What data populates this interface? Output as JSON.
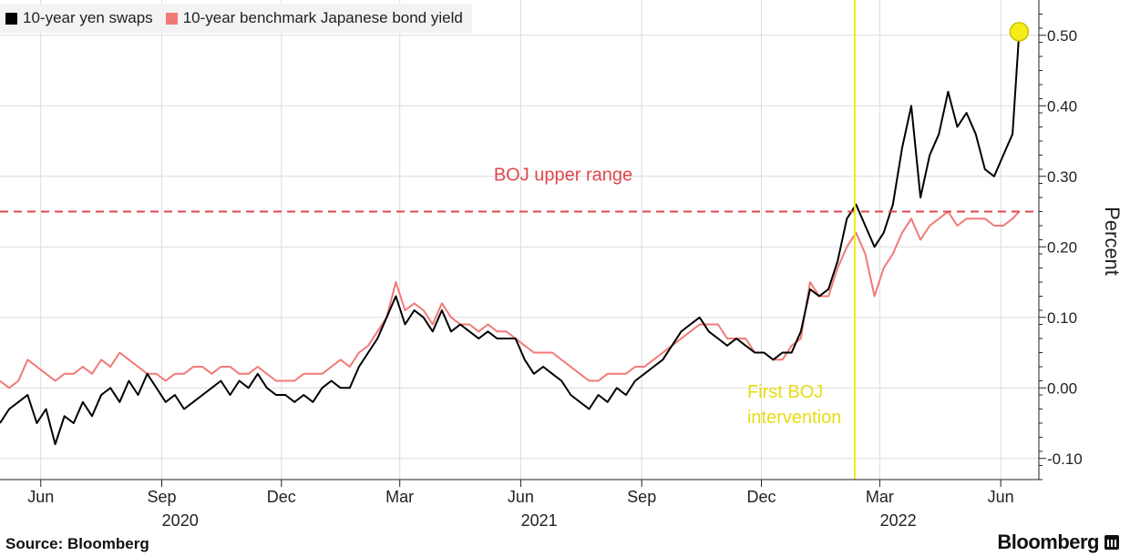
{
  "legend": [
    {
      "label": "10-year yen swaps",
      "color": "#000000"
    },
    {
      "label": "10-year benchmark Japanese bond yield",
      "color": "#f07a76"
    }
  ],
  "footer": {
    "source": "Source: Bloomberg",
    "brand": "Bloomberg"
  },
  "chart_data": {
    "type": "line",
    "ylabel": "Percent",
    "ylim": [
      -0.13,
      0.55
    ],
    "yticks": [
      -0.1,
      0.0,
      0.1,
      0.2,
      0.3,
      0.4,
      0.5
    ],
    "ytick_labels": [
      "-0.10",
      "0.00",
      "0.10",
      "0.20",
      "0.30",
      "0.40",
      "0.50"
    ],
    "xlim": [
      "2020-05-01",
      "2022-06-30"
    ],
    "xticks": [
      {
        "date": "2020-06-01",
        "label": "Jun"
      },
      {
        "date": "2020-09-01",
        "label": "Sep"
      },
      {
        "date": "2020-12-01",
        "label": "Dec"
      },
      {
        "date": "2021-03-01",
        "label": "Mar"
      },
      {
        "date": "2021-06-01",
        "label": "Jun"
      },
      {
        "date": "2021-09-01",
        "label": "Sep"
      },
      {
        "date": "2021-12-01",
        "label": "Dec"
      },
      {
        "date": "2022-03-01",
        "label": "Mar"
      },
      {
        "date": "2022-06-01",
        "label": "Jun"
      }
    ],
    "year_labels": [
      {
        "date": "2020-09-15",
        "label": "2020"
      },
      {
        "date": "2021-06-15",
        "label": "2021"
      },
      {
        "date": "2022-03-15",
        "label": "2022"
      }
    ],
    "reference_line": {
      "value": 0.25,
      "label": "BOJ upper range",
      "color": "#e0474c"
    },
    "event": {
      "date": "2022-02-10",
      "label_lines": [
        "First BOJ",
        "intervention"
      ],
      "color": "#f5ec18"
    },
    "highlight_point": {
      "date": "2022-06-15",
      "value": 0.505,
      "color": "#f5ec18"
    },
    "grid": true,
    "series": [
      {
        "name": "10-year yen swaps",
        "color": "#000000",
        "points": [
          [
            "2020-05-01",
            -0.05
          ],
          [
            "2020-05-08",
            -0.03
          ],
          [
            "2020-05-15",
            -0.02
          ],
          [
            "2020-05-22",
            -0.01
          ],
          [
            "2020-05-29",
            -0.05
          ],
          [
            "2020-06-05",
            -0.03
          ],
          [
            "2020-06-12",
            -0.08
          ],
          [
            "2020-06-19",
            -0.04
          ],
          [
            "2020-06-26",
            -0.05
          ],
          [
            "2020-07-03",
            -0.02
          ],
          [
            "2020-07-10",
            -0.04
          ],
          [
            "2020-07-17",
            -0.01
          ],
          [
            "2020-07-24",
            0.0
          ],
          [
            "2020-07-31",
            -0.02
          ],
          [
            "2020-08-07",
            0.01
          ],
          [
            "2020-08-14",
            -0.01
          ],
          [
            "2020-08-21",
            0.02
          ],
          [
            "2020-08-28",
            0.0
          ],
          [
            "2020-09-04",
            -0.02
          ],
          [
            "2020-09-11",
            -0.01
          ],
          [
            "2020-09-18",
            -0.03
          ],
          [
            "2020-09-25",
            -0.02
          ],
          [
            "2020-10-02",
            -0.01
          ],
          [
            "2020-10-09",
            0.0
          ],
          [
            "2020-10-16",
            0.01
          ],
          [
            "2020-10-23",
            -0.01
          ],
          [
            "2020-10-30",
            0.01
          ],
          [
            "2020-11-06",
            0.0
          ],
          [
            "2020-11-13",
            0.02
          ],
          [
            "2020-11-20",
            0.0
          ],
          [
            "2020-11-27",
            -0.01
          ],
          [
            "2020-12-04",
            -0.01
          ],
          [
            "2020-12-11",
            -0.02
          ],
          [
            "2020-12-18",
            -0.01
          ],
          [
            "2020-12-25",
            -0.02
          ],
          [
            "2021-01-01",
            0.0
          ],
          [
            "2021-01-08",
            0.01
          ],
          [
            "2021-01-15",
            0.0
          ],
          [
            "2021-01-22",
            0.0
          ],
          [
            "2021-01-29",
            0.03
          ],
          [
            "2021-02-05",
            0.05
          ],
          [
            "2021-02-12",
            0.07
          ],
          [
            "2021-02-19",
            0.1
          ],
          [
            "2021-02-26",
            0.13
          ],
          [
            "2021-03-05",
            0.09
          ],
          [
            "2021-03-12",
            0.11
          ],
          [
            "2021-03-19",
            0.1
          ],
          [
            "2021-03-26",
            0.08
          ],
          [
            "2021-04-02",
            0.11
          ],
          [
            "2021-04-09",
            0.08
          ],
          [
            "2021-04-16",
            0.09
          ],
          [
            "2021-04-23",
            0.08
          ],
          [
            "2021-04-30",
            0.07
          ],
          [
            "2021-05-07",
            0.08
          ],
          [
            "2021-05-14",
            0.07
          ],
          [
            "2021-05-21",
            0.07
          ],
          [
            "2021-05-28",
            0.07
          ],
          [
            "2021-06-04",
            0.04
          ],
          [
            "2021-06-11",
            0.02
          ],
          [
            "2021-06-18",
            0.03
          ],
          [
            "2021-06-25",
            0.02
          ],
          [
            "2021-07-02",
            0.01
          ],
          [
            "2021-07-09",
            -0.01
          ],
          [
            "2021-07-16",
            -0.02
          ],
          [
            "2021-07-23",
            -0.03
          ],
          [
            "2021-07-30",
            -0.01
          ],
          [
            "2021-08-06",
            -0.02
          ],
          [
            "2021-08-13",
            0.0
          ],
          [
            "2021-08-20",
            -0.01
          ],
          [
            "2021-08-27",
            0.01
          ],
          [
            "2021-09-03",
            0.02
          ],
          [
            "2021-09-10",
            0.03
          ],
          [
            "2021-09-17",
            0.04
          ],
          [
            "2021-09-24",
            0.06
          ],
          [
            "2021-10-01",
            0.08
          ],
          [
            "2021-10-08",
            0.09
          ],
          [
            "2021-10-15",
            0.1
          ],
          [
            "2021-10-22",
            0.08
          ],
          [
            "2021-10-29",
            0.07
          ],
          [
            "2021-11-05",
            0.06
          ],
          [
            "2021-11-12",
            0.07
          ],
          [
            "2021-11-19",
            0.06
          ],
          [
            "2021-11-26",
            0.05
          ],
          [
            "2021-12-03",
            0.05
          ],
          [
            "2021-12-10",
            0.04
          ],
          [
            "2021-12-17",
            0.05
          ],
          [
            "2021-12-24",
            0.05
          ],
          [
            "2021-12-31",
            0.08
          ],
          [
            "2022-01-07",
            0.14
          ],
          [
            "2022-01-14",
            0.13
          ],
          [
            "2022-01-21",
            0.14
          ],
          [
            "2022-01-28",
            0.18
          ],
          [
            "2022-02-04",
            0.24
          ],
          [
            "2022-02-11",
            0.26
          ],
          [
            "2022-02-18",
            0.23
          ],
          [
            "2022-02-25",
            0.2
          ],
          [
            "2022-03-04",
            0.22
          ],
          [
            "2022-03-11",
            0.26
          ],
          [
            "2022-03-18",
            0.34
          ],
          [
            "2022-03-25",
            0.4
          ],
          [
            "2022-04-01",
            0.27
          ],
          [
            "2022-04-08",
            0.33
          ],
          [
            "2022-04-15",
            0.36
          ],
          [
            "2022-04-22",
            0.42
          ],
          [
            "2022-04-29",
            0.37
          ],
          [
            "2022-05-06",
            0.39
          ],
          [
            "2022-05-13",
            0.36
          ],
          [
            "2022-05-20",
            0.31
          ],
          [
            "2022-05-27",
            0.3
          ],
          [
            "2022-06-03",
            0.33
          ],
          [
            "2022-06-10",
            0.36
          ],
          [
            "2022-06-15",
            0.505
          ]
        ]
      },
      {
        "name": "10-year benchmark Japanese bond yield",
        "color": "#f07a76",
        "points": [
          [
            "2020-05-01",
            0.01
          ],
          [
            "2020-05-08",
            0.0
          ],
          [
            "2020-05-15",
            0.01
          ],
          [
            "2020-05-22",
            0.04
          ],
          [
            "2020-05-29",
            0.03
          ],
          [
            "2020-06-05",
            0.02
          ],
          [
            "2020-06-12",
            0.01
          ],
          [
            "2020-06-19",
            0.02
          ],
          [
            "2020-06-26",
            0.02
          ],
          [
            "2020-07-03",
            0.03
          ],
          [
            "2020-07-10",
            0.02
          ],
          [
            "2020-07-17",
            0.04
          ],
          [
            "2020-07-24",
            0.03
          ],
          [
            "2020-07-31",
            0.05
          ],
          [
            "2020-08-07",
            0.04
          ],
          [
            "2020-08-14",
            0.03
          ],
          [
            "2020-08-21",
            0.02
          ],
          [
            "2020-08-28",
            0.02
          ],
          [
            "2020-09-04",
            0.01
          ],
          [
            "2020-09-11",
            0.02
          ],
          [
            "2020-09-18",
            0.02
          ],
          [
            "2020-09-25",
            0.03
          ],
          [
            "2020-10-02",
            0.03
          ],
          [
            "2020-10-09",
            0.02
          ],
          [
            "2020-10-16",
            0.03
          ],
          [
            "2020-10-23",
            0.03
          ],
          [
            "2020-10-30",
            0.02
          ],
          [
            "2020-11-06",
            0.02
          ],
          [
            "2020-11-13",
            0.03
          ],
          [
            "2020-11-20",
            0.02
          ],
          [
            "2020-11-27",
            0.01
          ],
          [
            "2020-12-04",
            0.01
          ],
          [
            "2020-12-11",
            0.01
          ],
          [
            "2020-12-18",
            0.02
          ],
          [
            "2020-12-25",
            0.02
          ],
          [
            "2021-01-01",
            0.02
          ],
          [
            "2021-01-08",
            0.03
          ],
          [
            "2021-01-15",
            0.04
          ],
          [
            "2021-01-22",
            0.03
          ],
          [
            "2021-01-29",
            0.05
          ],
          [
            "2021-02-05",
            0.06
          ],
          [
            "2021-02-12",
            0.08
          ],
          [
            "2021-02-19",
            0.1
          ],
          [
            "2021-02-26",
            0.15
          ],
          [
            "2021-03-05",
            0.11
          ],
          [
            "2021-03-12",
            0.12
          ],
          [
            "2021-03-19",
            0.11
          ],
          [
            "2021-03-26",
            0.09
          ],
          [
            "2021-04-02",
            0.12
          ],
          [
            "2021-04-09",
            0.1
          ],
          [
            "2021-04-16",
            0.09
          ],
          [
            "2021-04-23",
            0.09
          ],
          [
            "2021-04-30",
            0.08
          ],
          [
            "2021-05-07",
            0.09
          ],
          [
            "2021-05-14",
            0.08
          ],
          [
            "2021-05-21",
            0.08
          ],
          [
            "2021-05-28",
            0.07
          ],
          [
            "2021-06-04",
            0.06
          ],
          [
            "2021-06-11",
            0.05
          ],
          [
            "2021-06-18",
            0.05
          ],
          [
            "2021-06-25",
            0.05
          ],
          [
            "2021-07-02",
            0.04
          ],
          [
            "2021-07-09",
            0.03
          ],
          [
            "2021-07-16",
            0.02
          ],
          [
            "2021-07-23",
            0.01
          ],
          [
            "2021-07-30",
            0.01
          ],
          [
            "2021-08-06",
            0.02
          ],
          [
            "2021-08-13",
            0.02
          ],
          [
            "2021-08-20",
            0.02
          ],
          [
            "2021-08-27",
            0.03
          ],
          [
            "2021-09-03",
            0.03
          ],
          [
            "2021-09-10",
            0.04
          ],
          [
            "2021-09-17",
            0.05
          ],
          [
            "2021-09-24",
            0.06
          ],
          [
            "2021-10-01",
            0.07
          ],
          [
            "2021-10-08",
            0.08
          ],
          [
            "2021-10-15",
            0.09
          ],
          [
            "2021-10-22",
            0.09
          ],
          [
            "2021-10-29",
            0.09
          ],
          [
            "2021-11-05",
            0.07
          ],
          [
            "2021-11-12",
            0.07
          ],
          [
            "2021-11-19",
            0.07
          ],
          [
            "2021-11-26",
            0.05
          ],
          [
            "2021-12-03",
            0.05
          ],
          [
            "2021-12-10",
            0.04
          ],
          [
            "2021-12-17",
            0.04
          ],
          [
            "2021-12-24",
            0.06
          ],
          [
            "2021-12-31",
            0.07
          ],
          [
            "2022-01-07",
            0.15
          ],
          [
            "2022-01-14",
            0.13
          ],
          [
            "2022-01-21",
            0.13
          ],
          [
            "2022-01-28",
            0.17
          ],
          [
            "2022-02-04",
            0.2
          ],
          [
            "2022-02-11",
            0.22
          ],
          [
            "2022-02-18",
            0.19
          ],
          [
            "2022-02-25",
            0.13
          ],
          [
            "2022-03-04",
            0.17
          ],
          [
            "2022-03-11",
            0.19
          ],
          [
            "2022-03-18",
            0.22
          ],
          [
            "2022-03-25",
            0.24
          ],
          [
            "2022-04-01",
            0.21
          ],
          [
            "2022-04-08",
            0.23
          ],
          [
            "2022-04-15",
            0.24
          ],
          [
            "2022-04-22",
            0.25
          ],
          [
            "2022-04-29",
            0.23
          ],
          [
            "2022-05-06",
            0.24
          ],
          [
            "2022-05-13",
            0.24
          ],
          [
            "2022-05-20",
            0.24
          ],
          [
            "2022-05-27",
            0.23
          ],
          [
            "2022-06-03",
            0.23
          ],
          [
            "2022-06-10",
            0.24
          ],
          [
            "2022-06-15",
            0.25
          ]
        ]
      }
    ]
  }
}
